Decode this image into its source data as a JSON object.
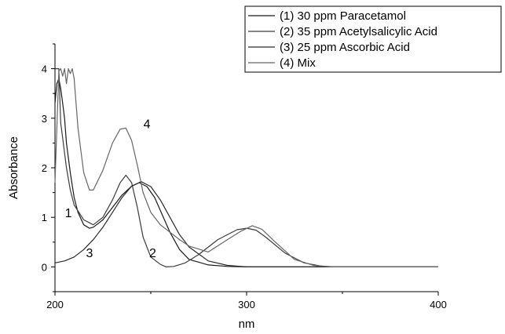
{
  "chart_data": {
    "type": "line",
    "title": "",
    "xlabel": "nm",
    "ylabel": "Absorbance",
    "xlim": [
      200,
      400
    ],
    "ylim": [
      -0.5,
      4.5
    ],
    "xticks": [
      200,
      300,
      400
    ],
    "yticks": [
      0,
      1,
      2,
      3,
      4
    ],
    "grid": false,
    "legend_position": "top-right",
    "series": [
      {
        "name": "(1) 30 ppm Paracetamol",
        "label": "1",
        "color": "#1a1a1a",
        "x": [
          200,
          201,
          202,
          203,
          204,
          205,
          206,
          208,
          210,
          212,
          215,
          218,
          220,
          225,
          230,
          235,
          240,
          244,
          248,
          252,
          256,
          260,
          265,
          270,
          280,
          290,
          300,
          320,
          400
        ],
        "y": [
          3.3,
          3.7,
          3.8,
          3.6,
          3.3,
          3.0,
          2.5,
          1.9,
          1.4,
          1.1,
          0.85,
          0.78,
          0.8,
          0.95,
          1.2,
          1.45,
          1.63,
          1.7,
          1.62,
          1.4,
          1.05,
          0.7,
          0.35,
          0.15,
          0.04,
          0.01,
          0.0,
          0.0,
          0.0
        ]
      },
      {
        "name": "(2) 35 ppm Acetylsalicylic Acid",
        "label": "2",
        "color": "#3c3c3c",
        "x": [
          200,
          202,
          203,
          204,
          206,
          208,
          210,
          215,
          220,
          225,
          230,
          234,
          237,
          240,
          243,
          246,
          250,
          255,
          258,
          262,
          268,
          275,
          285,
          295,
          300,
          305,
          310,
          320,
          330,
          340,
          350,
          400
        ],
        "y": [
          4.0,
          4.0,
          2.9,
          2.6,
          2.0,
          1.55,
          1.25,
          0.95,
          0.85,
          1.0,
          1.35,
          1.7,
          1.85,
          1.7,
          1.2,
          0.6,
          0.2,
          0.05,
          0.0,
          0.01,
          0.08,
          0.25,
          0.55,
          0.75,
          0.78,
          0.74,
          0.6,
          0.28,
          0.08,
          0.01,
          0.0,
          0.0
        ]
      },
      {
        "name": "(3) 25 ppm Ascorbic Acid",
        "label": "3",
        "color": "#2a2a2a",
        "x": [
          200,
          205,
          210,
          215,
          220,
          225,
          230,
          235,
          240,
          245,
          250,
          255,
          260,
          265,
          270,
          280,
          290,
          300,
          320,
          400
        ],
        "y": [
          0.08,
          0.12,
          0.2,
          0.35,
          0.55,
          0.8,
          1.1,
          1.4,
          1.63,
          1.72,
          1.62,
          1.35,
          1.0,
          0.65,
          0.4,
          0.12,
          0.03,
          0.0,
          0.0,
          0.0
        ]
      },
      {
        "name": "(4) Mix",
        "label": "4",
        "color": "#666666",
        "x": [
          200,
          202,
          203,
          204,
          205,
          206,
          207,
          208,
          209,
          210,
          212,
          215,
          218,
          220,
          225,
          230,
          234,
          237,
          240,
          243,
          246,
          250,
          255,
          260,
          265,
          270,
          280,
          290,
          297,
          303,
          308,
          315,
          325,
          335,
          345,
          400
        ],
        "y": [
          1.7,
          3.95,
          4.0,
          3.85,
          4.0,
          3.7,
          4.0,
          3.9,
          4.0,
          3.8,
          2.8,
          1.9,
          1.55,
          1.55,
          1.95,
          2.5,
          2.78,
          2.8,
          2.55,
          2.05,
          1.5,
          1.1,
          0.85,
          0.7,
          0.55,
          0.42,
          0.3,
          0.55,
          0.72,
          0.83,
          0.76,
          0.5,
          0.15,
          0.03,
          0.0,
          0.0
        ]
      }
    ]
  }
}
